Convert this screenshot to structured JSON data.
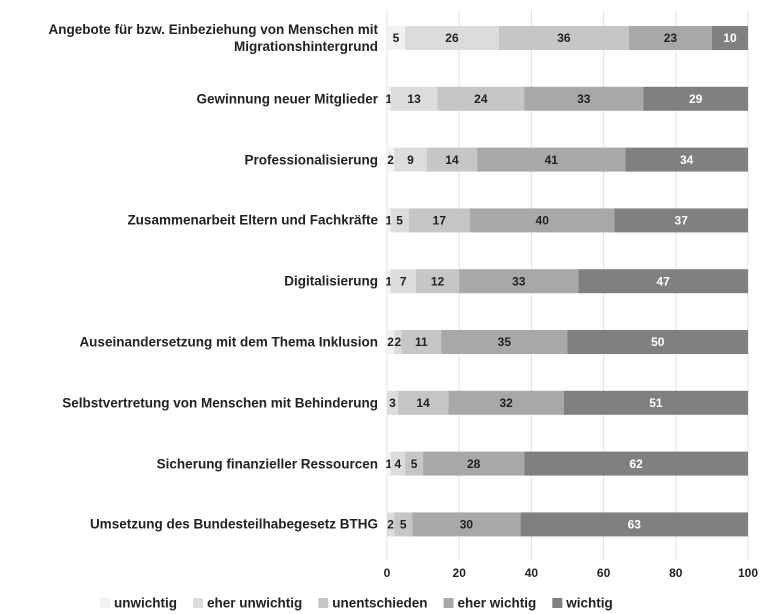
{
  "chart_data": {
    "type": "stacked_barh",
    "categories": [
      "Angebote für bzw. Einbeziehung von Menschen mit Migrationshintergrund",
      "Gewinnung neuer Mitglieder",
      "Professionalisierung",
      "Zusammenarbeit Eltern und Fachkräfte",
      "Digitalisierung",
      "Auseinandersetzung mit dem Thema Inklusion",
      "Selbstvertretung von Menschen mit Behinderung",
      "Sicherung finanzieller Ressourcen",
      "Umsetzung des Bundesteilhabegesetz BTHG"
    ],
    "series": [
      {
        "name": "unwichtig",
        "color": "#f2f2f2",
        "values": [
          5,
          1,
          2,
          1,
          1,
          2,
          null,
          1,
          null
        ]
      },
      {
        "name": "eher unwichtig",
        "color": "#dcdcdc",
        "values": [
          26,
          13,
          9,
          5,
          7,
          2,
          3,
          4,
          2
        ]
      },
      {
        "name": "unentschieden",
        "color": "#c6c6c6",
        "values": [
          36,
          24,
          14,
          17,
          12,
          11,
          14,
          5,
          5
        ]
      },
      {
        "name": "eher wichtig",
        "color": "#a8a8a8",
        "values": [
          23,
          33,
          41,
          40,
          33,
          35,
          32,
          28,
          30
        ]
      },
      {
        "name": "wichtig",
        "color": "#808080",
        "values": [
          10,
          29,
          34,
          37,
          47,
          50,
          51,
          62,
          63
        ]
      }
    ],
    "xlim": [
      0,
      100
    ],
    "xticks": [
      0,
      20,
      40,
      60,
      80,
      100
    ],
    "grid": true,
    "legend": "bottom"
  }
}
